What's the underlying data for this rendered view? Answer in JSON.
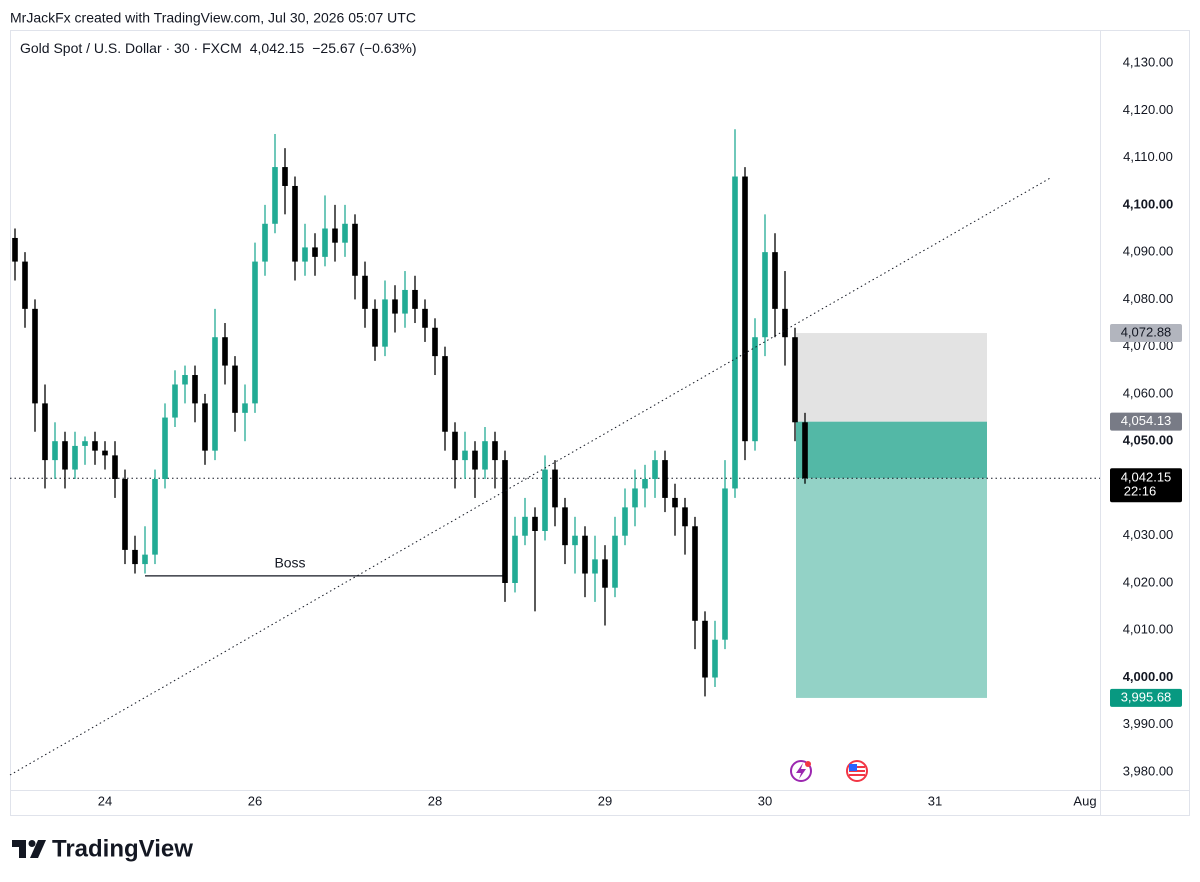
{
  "watermark": "MrJackFx created with TradingView.com, Jul 30, 2026 05:07 UTC",
  "brand": "TradingView",
  "chart_data": {
    "type": "candlestick",
    "title": "Gold Spot / U.S. Dollar · 30 · FXCM",
    "last": "4,042.15",
    "change": "−25.67 (−0.63%)",
    "up_color": "#22ab94",
    "down_color": "#000000",
    "ylim": [
      3976.2,
      4137.0
    ],
    "yticks": [
      {
        "value": 3980,
        "label": "3,980.00"
      },
      {
        "value": 3990,
        "label": "3,990.00"
      },
      {
        "value": 4000,
        "label": "4,000.00"
      },
      {
        "value": 4010,
        "label": "4,010.00"
      },
      {
        "value": 4020,
        "label": "4,020.00"
      },
      {
        "value": 4030,
        "label": "4,030.00"
      },
      {
        "value": 4040,
        "label": "4,040.00"
      },
      {
        "value": 4050,
        "label": "4,050.00"
      },
      {
        "value": 4060,
        "label": "4,060.00"
      },
      {
        "value": 4070,
        "label": "4,070.00"
      },
      {
        "value": 4080,
        "label": "4,080.00"
      },
      {
        "value": 4090,
        "label": "4,090.00"
      },
      {
        "value": 4100,
        "label": "4,100.00"
      },
      {
        "value": 4110,
        "label": "4,110.00"
      },
      {
        "value": 4120,
        "label": "4,120.00"
      },
      {
        "value": 4130,
        "label": "4,130.00"
      }
    ],
    "categories": [
      null,
      null,
      null,
      null,
      null,
      null,
      null,
      null,
      null,
      "24",
      null,
      null,
      null,
      null,
      null,
      null,
      null,
      null,
      null,
      null,
      null,
      null,
      null,
      null,
      "26",
      null,
      null,
      null,
      null,
      null,
      null,
      null,
      null,
      null,
      null,
      null,
      null,
      null,
      null,
      null,
      null,
      null,
      "28",
      null,
      null,
      null,
      null,
      null,
      null,
      null,
      null,
      null,
      null,
      null,
      null,
      null,
      null,
      null,
      null,
      "29",
      null,
      null,
      null,
      null,
      null,
      null,
      null,
      null,
      null,
      null,
      null,
      null,
      null,
      null,
      null,
      "30",
      null,
      null,
      null,
      null,
      null,
      null,
      null,
      null,
      null,
      null,
      null,
      null,
      null,
      null,
      null,
      null,
      "31",
      null,
      null,
      null,
      null,
      null,
      null,
      null,
      null,
      null,
      null,
      null,
      null,
      null,
      null,
      "Aug",
      null
    ],
    "open": [
      4093,
      4088,
      4078,
      4058,
      4046,
      4050,
      4044,
      4049,
      4050,
      4048,
      4047,
      4042,
      4027,
      4024,
      4026,
      4042,
      4055,
      4062,
      4064,
      4058,
      4048,
      4072,
      4066,
      4056,
      4058,
      4088,
      4096,
      4108,
      4104,
      4088,
      4091,
      4089,
      4095,
      4092,
      4096,
      4085,
      4078,
      4070,
      4080,
      4077,
      4082,
      4078,
      4074,
      4068,
      4052,
      4046,
      4048,
      4044,
      4050,
      4046,
      4020,
      4030,
      4034,
      4031,
      4044,
      4036,
      4028,
      4030,
      4022,
      4025,
      4019,
      4030,
      4036,
      4040,
      4042,
      4046,
      4038,
      4036,
      4032,
      4012,
      4000,
      4008,
      4040,
      4106,
      4050,
      4072,
      4090,
      4078,
      4072,
      4054,
      null,
      null,
      null,
      null,
      null,
      null,
      null,
      null,
      null,
      null,
      null,
      null,
      null,
      null,
      null,
      null,
      null,
      null,
      null,
      null,
      null,
      null,
      null,
      null,
      null,
      null,
      null,
      null,
      null
    ],
    "high": [
      4095,
      4090,
      4080,
      4062,
      4054,
      4052,
      4052,
      4051,
      4052,
      4050,
      4050,
      4044,
      4030,
      4032,
      4044,
      4058,
      4065,
      4066,
      4066,
      4060,
      4078,
      4075,
      4068,
      4062,
      4092,
      4100,
      4115,
      4112,
      4106,
      4096,
      4094,
      4102,
      4100,
      4100,
      4098,
      4088,
      4080,
      4084,
      4083,
      4086,
      4085,
      4080,
      4076,
      4070,
      4054,
      4052,
      4050,
      4053,
      4052,
      4048,
      4034,
      4038,
      4036,
      4047,
      4046,
      4038,
      4034,
      4032,
      4030,
      4028,
      4034,
      4040,
      4044,
      4045,
      4048,
      4048,
      4041,
      4038,
      4034,
      4014,
      4012,
      4046,
      4116,
      4108,
      4076,
      4098,
      4094,
      4086,
      4074,
      4056,
      null,
      null,
      null,
      null,
      null,
      null,
      null,
      null,
      null,
      null,
      null,
      null,
      null,
      null,
      null,
      null,
      null,
      null,
      null,
      null,
      null,
      null,
      null,
      null,
      null,
      null,
      null,
      null,
      null
    ],
    "low": [
      4084,
      4074,
      4052,
      4040,
      4042,
      4040,
      4042,
      4045,
      4045,
      4044,
      4038,
      4024,
      4022,
      4022,
      4024,
      4040,
      4053,
      4058,
      4054,
      4045,
      4046,
      4062,
      4052,
      4050,
      4056,
      4085,
      4094,
      4098,
      4084,
      4085,
      4085,
      4087,
      4088,
      4089,
      4080,
      4074,
      4067,
      4068,
      4073,
      4074,
      4075,
      4071,
      4064,
      4048,
      4040,
      4042,
      4038,
      4042,
      4040,
      4016,
      4018,
      4028,
      4014,
      4029,
      4032,
      4024,
      4022,
      4017,
      4016,
      4011,
      4017,
      4028,
      4032,
      4036,
      4038,
      4035,
      4030,
      4026,
      4006,
      3996,
      3998,
      4006,
      4038,
      4046,
      4048,
      4068,
      4072,
      4066,
      4050,
      4041,
      null,
      null,
      null,
      null,
      null,
      null,
      null,
      null,
      null,
      null,
      null,
      null,
      null,
      null,
      null,
      null,
      null,
      null,
      null,
      null,
      null,
      null,
      null,
      null,
      null,
      null,
      null,
      null,
      null
    ],
    "close": [
      4088,
      4078,
      4058,
      4046,
      4050,
      4044,
      4049,
      4050,
      4048,
      4047,
      4042,
      4027,
      4024,
      4026,
      4042,
      4055,
      4062,
      4064,
      4058,
      4048,
      4072,
      4066,
      4056,
      4058,
      4088,
      4096,
      4108,
      4104,
      4088,
      4091,
      4089,
      4095,
      4092,
      4096,
      4085,
      4078,
      4070,
      4080,
      4077,
      4082,
      4078,
      4074,
      4068,
      4052,
      4046,
      4048,
      4044,
      4050,
      4046,
      4020,
      4030,
      4034,
      4031,
      4044,
      4036,
      4028,
      4030,
      4022,
      4025,
      4019,
      4030,
      4036,
      4040,
      4042,
      4046,
      4038,
      4036,
      4032,
      4012,
      4000,
      4008,
      4040,
      4106,
      4050,
      4072,
      4090,
      4078,
      4072,
      4054,
      4042.15,
      null,
      null,
      null,
      null,
      null,
      null,
      null,
      null,
      null,
      null,
      null,
      null,
      null,
      null,
      null,
      null,
      null,
      null,
      null,
      null,
      null,
      null,
      null,
      null,
      null,
      null,
      null,
      null,
      null
    ],
    "last_price": {
      "value": 4042.15,
      "label": "4,042.15",
      "countdown": "22:16"
    },
    "position": {
      "stop": {
        "value": 4072.88,
        "label": "4,072.88"
      },
      "entry": {
        "value": 4054.13,
        "label": "4,054.13"
      },
      "target": {
        "value": 3995.68,
        "label": "3,995.68"
      }
    },
    "annotations": [
      {
        "text": "Boss",
        "value": 4021.5
      }
    ]
  }
}
